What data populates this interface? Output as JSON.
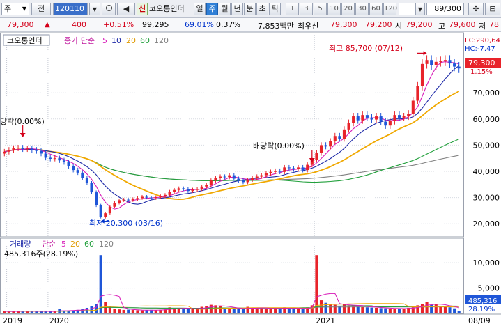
{
  "toolbar": {
    "market_select": "주",
    "prev_label": "전",
    "stock_code": "120110",
    "new_label": "신",
    "stock_name": "코오롱인더",
    "period_tabs": [
      "일",
      "주",
      "월",
      "년",
      "분",
      "초",
      "틱"
    ],
    "active_period": "주",
    "minute_presets": [
      "1",
      "3",
      "5",
      "10",
      "20",
      "30",
      "60",
      "120"
    ],
    "page_counter": "89/300"
  },
  "quote": {
    "price": "79,300",
    "change": "400",
    "change_pct": "+0.51%",
    "volume": "99,295",
    "vol_ratio": "69.01%",
    "turnover": "0.37%",
    "amount": "7,853백만",
    "best_ask_label": "최우선",
    "ask": "79,300",
    "bid": "79,200",
    "open_label": "시",
    "open": "79,200",
    "high_label": "고",
    "high": "79,600",
    "low_label": "저",
    "low": "78"
  },
  "price_panel": {
    "title": "코오롱인더",
    "ma_label": "종가 단순",
    "ma_periods": [
      "5",
      "10",
      "20",
      "60",
      "120"
    ],
    "lc_label": "LC:290,64",
    "hc_label": "HC:-7.47",
    "last_price_tag": "79,300",
    "last_change_tag": "1.15%",
    "max_annotation": "최고 85,700 (07/12)",
    "min_annotation": "최저 20,300 (03/16)",
    "div_annotation_1": "당락(0.00%)",
    "div_annotation_2": "배당락(0.00%)"
  },
  "volume_panel": {
    "title": "거래량",
    "ma_label": "단순",
    "ma_periods": [
      "5",
      "20",
      "60",
      "120"
    ],
    "last_value_text": "485,316주(28.19%)",
    "last_tag": "485,316",
    "last_pct_tag": "28.19%"
  },
  "colors": {
    "up": "#e8232a",
    "down": "#1f56d8",
    "ma5": "#d81ab8",
    "ma10": "#1e2aa8",
    "ma20": "#f0a800",
    "ma60": "#22a03c",
    "ma120": "#808080"
  },
  "chart_data": {
    "type": "candlestick",
    "interval": "weekly",
    "x_axis_labels": [
      "2019",
      "2020",
      "2021",
      "08/09"
    ],
    "price_axis": {
      "ylim": [
        15000,
        90000
      ],
      "ticks": [
        20000,
        30000,
        40000,
        50000,
        60000,
        70000
      ],
      "tick_labels": [
        "20,000",
        "30,000",
        "40,000",
        "50,000",
        "60,000",
        "70,000"
      ]
    },
    "volume_axis": {
      "ylim": [
        0,
        14000
      ],
      "ticks": [
        5000,
        10000
      ],
      "tick_labels": [
        "5,000",
        "10,000"
      ],
      "unit": "thousand shares"
    },
    "close": [
      47500,
      48200,
      48800,
      49000,
      48500,
      48700,
      48200,
      47800,
      46800,
      45200,
      44800,
      45000,
      44200,
      43500,
      42000,
      40500,
      39500,
      37500,
      35500,
      32000,
      27000,
      22500,
      24000,
      26500,
      28000,
      29000,
      29200,
      29000,
      29400,
      29800,
      30300,
      30000,
      29800,
      30100,
      30500,
      31000,
      32200,
      32900,
      33500,
      33200,
      32500,
      33000,
      33200,
      34200,
      34800,
      36500,
      37500,
      38000,
      37800,
      38500,
      37200,
      36500,
      35900,
      36800,
      37400,
      38000,
      38500,
      39200,
      39800,
      40200,
      39800,
      41500,
      41200,
      40800,
      41500,
      40500,
      42500,
      44500,
      47000,
      50000,
      49500,
      51500,
      53500,
      52500,
      56000,
      58500,
      61000,
      59500,
      61500,
      60500,
      59800,
      61000,
      59000,
      57500,
      59200,
      61500,
      60500,
      61000,
      62000,
      67000,
      72500,
      81000,
      82500,
      80500,
      81800,
      82000,
      82500,
      81200,
      80000,
      79300
    ],
    "volume": [
      420,
      380,
      450,
      400,
      520,
      480,
      350,
      390,
      460,
      420,
      380,
      410,
      900,
      550,
      480,
      620,
      700,
      850,
      1100,
      1500,
      1900,
      11500,
      2200,
      1400,
      900,
      800,
      700,
      750,
      680,
      620,
      600,
      650,
      700,
      680,
      720,
      800,
      1200,
      900,
      1100,
      1000,
      850,
      900,
      950,
      1300,
      1500,
      1700,
      1600,
      1400,
      1100,
      1000,
      950,
      900,
      850,
      1300,
      1150,
      1000,
      1100,
      900,
      950,
      1050,
      1000,
      1200,
      900,
      850,
      1100,
      950,
      1200,
      1600,
      11500,
      2600,
      2100,
      1800,
      1700,
      1500,
      1900,
      1600,
      1500,
      1400,
      1300,
      1200,
      1150,
      1100,
      1050,
      1000,
      950,
      900,
      950,
      1000,
      1100,
      1200,
      1600,
      1900,
      2200,
      1700,
      1800,
      1500,
      1400,
      1200,
      1000,
      485
    ]
  }
}
